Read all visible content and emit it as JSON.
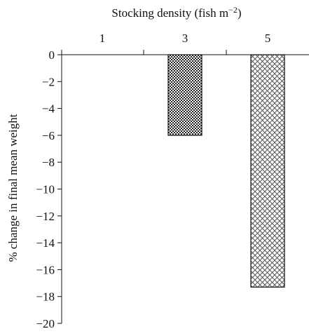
{
  "chart_data": {
    "type": "bar",
    "title": "Stocking density (fish m",
    "title_superscript": "−2",
    "title_suffix": ")",
    "xlabel": "",
    "ylabel": "% change in final mean weight",
    "categories": [
      "1",
      "3",
      "5"
    ],
    "values": [
      0,
      -6,
      -17.3
    ],
    "ylim": [
      -20,
      0
    ],
    "yticks": [
      "0",
      "−2",
      "−4",
      "−6",
      "−8",
      "−10",
      "−12",
      "−14",
      "−16",
      "−18",
      "−20"
    ],
    "x_axis_position": "top",
    "grid": false,
    "bar_patterns": [
      "none",
      "checkerboard",
      "crosshatch"
    ],
    "colors": {
      "axis": "#111111",
      "bar_fill": "#ffffff",
      "pattern": "#222222"
    }
  }
}
